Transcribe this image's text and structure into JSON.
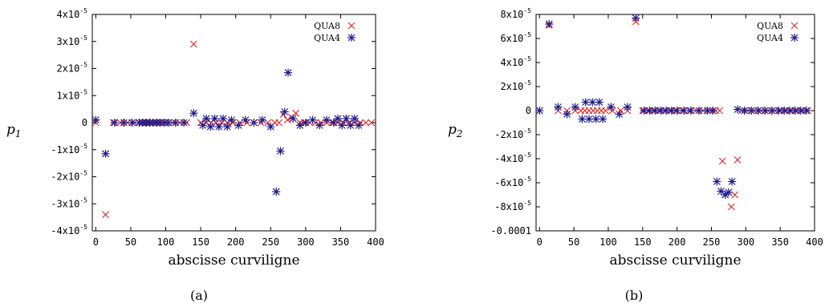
{
  "chart_data": [
    {
      "type": "scatter",
      "panel_caption": "(a)",
      "xlabel": "abscisse curviligne",
      "ylabel": "p",
      "ylabel_sub": "1",
      "xlim": [
        -5,
        400
      ],
      "ylim": [
        -4e-05,
        4e-05
      ],
      "x_ticks": [
        0,
        50,
        100,
        150,
        200,
        250,
        300,
        350,
        400
      ],
      "y_ticks": [
        {
          "value": -4e-05,
          "base": "-4x10",
          "exp": "-5"
        },
        {
          "value": -3e-05,
          "base": "-3x10",
          "exp": "-5"
        },
        {
          "value": -2e-05,
          "base": "-2x10",
          "exp": "-5"
        },
        {
          "value": -1e-05,
          "base": "-1x10",
          "exp": "-5"
        },
        {
          "value": 0,
          "base": "0",
          "exp": ""
        },
        {
          "value": 1e-05,
          "base": "1x10",
          "exp": "-5"
        },
        {
          "value": 2e-05,
          "base": "2x10",
          "exp": "-5"
        },
        {
          "value": 3e-05,
          "base": "3x10",
          "exp": "-5"
        },
        {
          "value": 4e-05,
          "base": "4x10",
          "exp": "-5"
        }
      ],
      "grid": false,
      "legend_position": "top-right",
      "series": [
        {
          "name": "QUA8",
          "marker": "x",
          "color": "#e8201e",
          "points": [
            [
              0,
              0
            ],
            [
              14,
              -3.4e-05
            ],
            [
              25,
              0
            ],
            [
              35,
              0
            ],
            [
              45,
              0
            ],
            [
              55,
              0
            ],
            [
              62,
              0
            ],
            [
              66,
              0
            ],
            [
              70,
              0
            ],
            [
              74,
              0
            ],
            [
              78,
              0
            ],
            [
              82,
              0
            ],
            [
              86,
              0
            ],
            [
              90,
              0
            ],
            [
              95,
              0
            ],
            [
              100,
              0
            ],
            [
              110,
              0
            ],
            [
              120,
              0
            ],
            [
              130,
              0
            ],
            [
              140,
              2.9e-05
            ],
            [
              150,
              0
            ],
            [
              158,
              0
            ],
            [
              165,
              0
            ],
            [
              172,
              0
            ],
            [
              180,
              0
            ],
            [
              188,
              0
            ],
            [
              196,
              0
            ],
            [
              206,
              0
            ],
            [
              216,
              0
            ],
            [
              226,
              0
            ],
            [
              236,
              0
            ],
            [
              246,
              0
            ],
            [
              256,
              0
            ],
            [
              262,
              0
            ],
            [
              268,
              3e-06
            ],
            [
              274,
              1e-06
            ],
            [
              280,
              2e-06
            ],
            [
              286,
              3.5e-06
            ],
            [
              292,
              0
            ],
            [
              298,
              0
            ],
            [
              306,
              0
            ],
            [
              314,
              0
            ],
            [
              322,
              0
            ],
            [
              330,
              0
            ],
            [
              338,
              0
            ],
            [
              346,
              0
            ],
            [
              354,
              0
            ],
            [
              362,
              0
            ],
            [
              370,
              0
            ],
            [
              378,
              0
            ],
            [
              386,
              0
            ],
            [
              394,
              0
            ]
          ]
        },
        {
          "name": "QUA4",
          "marker": "asterisk",
          "color": "#1a1a8c",
          "points": [
            [
              0,
              1e-06
            ],
            [
              14,
              -1.15e-05
            ],
            [
              27,
              0
            ],
            [
              40,
              0
            ],
            [
              52,
              0
            ],
            [
              62,
              0
            ],
            [
              67,
              0
            ],
            [
              72,
              0
            ],
            [
              77,
              0
            ],
            [
              82,
              0
            ],
            [
              87,
              0
            ],
            [
              92,
              0
            ],
            [
              98,
              0
            ],
            [
              104,
              0
            ],
            [
              114,
              0
            ],
            [
              126,
              0
            ],
            [
              140,
              3.5e-06
            ],
            [
              153,
              -1e-06
            ],
            [
              158,
              1.5e-06
            ],
            [
              164,
              -1.5e-06
            ],
            [
              170,
              1.5e-06
            ],
            [
              176,
              -1.5e-06
            ],
            [
              182,
              1.5e-06
            ],
            [
              188,
              -1.5e-06
            ],
            [
              194,
              1e-06
            ],
            [
              204,
              -1e-06
            ],
            [
              214,
              1e-06
            ],
            [
              226,
              0
            ],
            [
              238,
              1e-06
            ],
            [
              250,
              -1.5e-06
            ],
            [
              258,
              -2.55e-05
            ],
            [
              264,
              -1.05e-05
            ],
            [
              270,
              4e-06
            ],
            [
              275,
              1.85e-05
            ],
            [
              282,
              1.5e-06
            ],
            [
              292,
              -1e-06
            ],
            [
              300,
              0
            ],
            [
              310,
              1e-06
            ],
            [
              320,
              -1e-06
            ],
            [
              330,
              1e-06
            ],
            [
              340,
              0
            ],
            [
              346,
              1.5e-06
            ],
            [
              352,
              -1e-06
            ],
            [
              358,
              1.5e-06
            ],
            [
              364,
              -1e-06
            ],
            [
              370,
              1.5e-06
            ],
            [
              376,
              -1e-06
            ]
          ]
        }
      ]
    },
    {
      "type": "scatter",
      "panel_caption": "(b)",
      "xlabel": "abscisse curviligne",
      "ylabel": "p",
      "ylabel_sub": "2",
      "xlim": [
        -5,
        400
      ],
      "ylim": [
        -0.0001,
        8e-05
      ],
      "x_ticks": [
        0,
        50,
        100,
        150,
        200,
        250,
        300,
        350,
        400
      ],
      "y_ticks": [
        {
          "value": -0.0001,
          "base": "-0.0001",
          "exp": ""
        },
        {
          "value": -8e-05,
          "base": "-8x10",
          "exp": "-5"
        },
        {
          "value": -6e-05,
          "base": "-6x10",
          "exp": "-5"
        },
        {
          "value": -4e-05,
          "base": "-4x10",
          "exp": "-5"
        },
        {
          "value": -2e-05,
          "base": "-2x10",
          "exp": "-5"
        },
        {
          "value": 0,
          "base": "0",
          "exp": ""
        },
        {
          "value": 2e-05,
          "base": "2x10",
          "exp": "-5"
        },
        {
          "value": 4e-05,
          "base": "4x10",
          "exp": "-5"
        },
        {
          "value": 6e-05,
          "base": "6x10",
          "exp": "-5"
        },
        {
          "value": 8e-05,
          "base": "8x10",
          "exp": "-5"
        }
      ],
      "grid": false,
      "legend_position": "top-right",
      "series": [
        {
          "name": "QUA8",
          "marker": "x",
          "color": "#e8201e",
          "points": [
            [
              0,
              0
            ],
            [
              14,
              7.1e-05
            ],
            [
              27,
              0
            ],
            [
              40,
              0
            ],
            [
              52,
              0
            ],
            [
              60,
              0
            ],
            [
              66,
              0
            ],
            [
              72,
              0
            ],
            [
              78,
              0
            ],
            [
              84,
              0
            ],
            [
              90,
              0
            ],
            [
              96,
              0
            ],
            [
              106,
              0
            ],
            [
              118,
              0
            ],
            [
              128,
              0
            ],
            [
              140,
              7.4e-05
            ],
            [
              150,
              0
            ],
            [
              158,
              0
            ],
            [
              166,
              0
            ],
            [
              174,
              0
            ],
            [
              182,
              0
            ],
            [
              190,
              0
            ],
            [
              198,
              0
            ],
            [
              208,
              0
            ],
            [
              218,
              0
            ],
            [
              228,
              0
            ],
            [
              238,
              0
            ],
            [
              248,
              0
            ],
            [
              256,
              0
            ],
            [
              262,
              0
            ],
            [
              266,
              -4.2e-05
            ],
            [
              270,
              -7e-05
            ],
            [
              275,
              -6.8e-05
            ],
            [
              279,
              -8e-05
            ],
            [
              284,
              -7e-05
            ],
            [
              288,
              -4.1e-05
            ],
            [
              294,
              0
            ],
            [
              302,
              0
            ],
            [
              312,
              0
            ],
            [
              322,
              0
            ],
            [
              332,
              0
            ],
            [
              342,
              0
            ],
            [
              350,
              0
            ],
            [
              358,
              0
            ],
            [
              366,
              0
            ],
            [
              374,
              0
            ],
            [
              382,
              0
            ],
            [
              390,
              0
            ]
          ]
        },
        {
          "name": "QUA4",
          "marker": "asterisk",
          "color": "#1a1a8c",
          "points": [
            [
              0,
              0
            ],
            [
              14,
              7.2e-05
            ],
            [
              27,
              3e-06
            ],
            [
              40,
              -3e-06
            ],
            [
              52,
              3e-06
            ],
            [
              62,
              -7e-06
            ],
            [
              67,
              7e-06
            ],
            [
              72,
              -7e-06
            ],
            [
              77,
              7e-06
            ],
            [
              82,
              -7e-06
            ],
            [
              87,
              7e-06
            ],
            [
              92,
              -7e-06
            ],
            [
              104,
              3e-06
            ],
            [
              116,
              -3e-06
            ],
            [
              128,
              3e-06
            ],
            [
              140,
              7.7e-05
            ],
            [
              152,
              0
            ],
            [
              160,
              0
            ],
            [
              168,
              0
            ],
            [
              176,
              0
            ],
            [
              184,
              0
            ],
            [
              192,
              0
            ],
            [
              200,
              0
            ],
            [
              210,
              0
            ],
            [
              220,
              0
            ],
            [
              232,
              0
            ],
            [
              244,
              0
            ],
            [
              252,
              0
            ],
            [
              258,
              -5.9e-05
            ],
            [
              264,
              -6.7e-05
            ],
            [
              270,
              -7e-05
            ],
            [
              275,
              -6.8e-05
            ],
            [
              280,
              -5.9e-05
            ],
            [
              288,
              1e-06
            ],
            [
              298,
              0
            ],
            [
              308,
              0
            ],
            [
              318,
              0
            ],
            [
              328,
              0
            ],
            [
              338,
              0
            ],
            [
              348,
              0
            ],
            [
              356,
              0
            ],
            [
              364,
              0
            ],
            [
              372,
              0
            ],
            [
              380,
              0
            ],
            [
              388,
              0
            ]
          ]
        }
      ]
    }
  ]
}
